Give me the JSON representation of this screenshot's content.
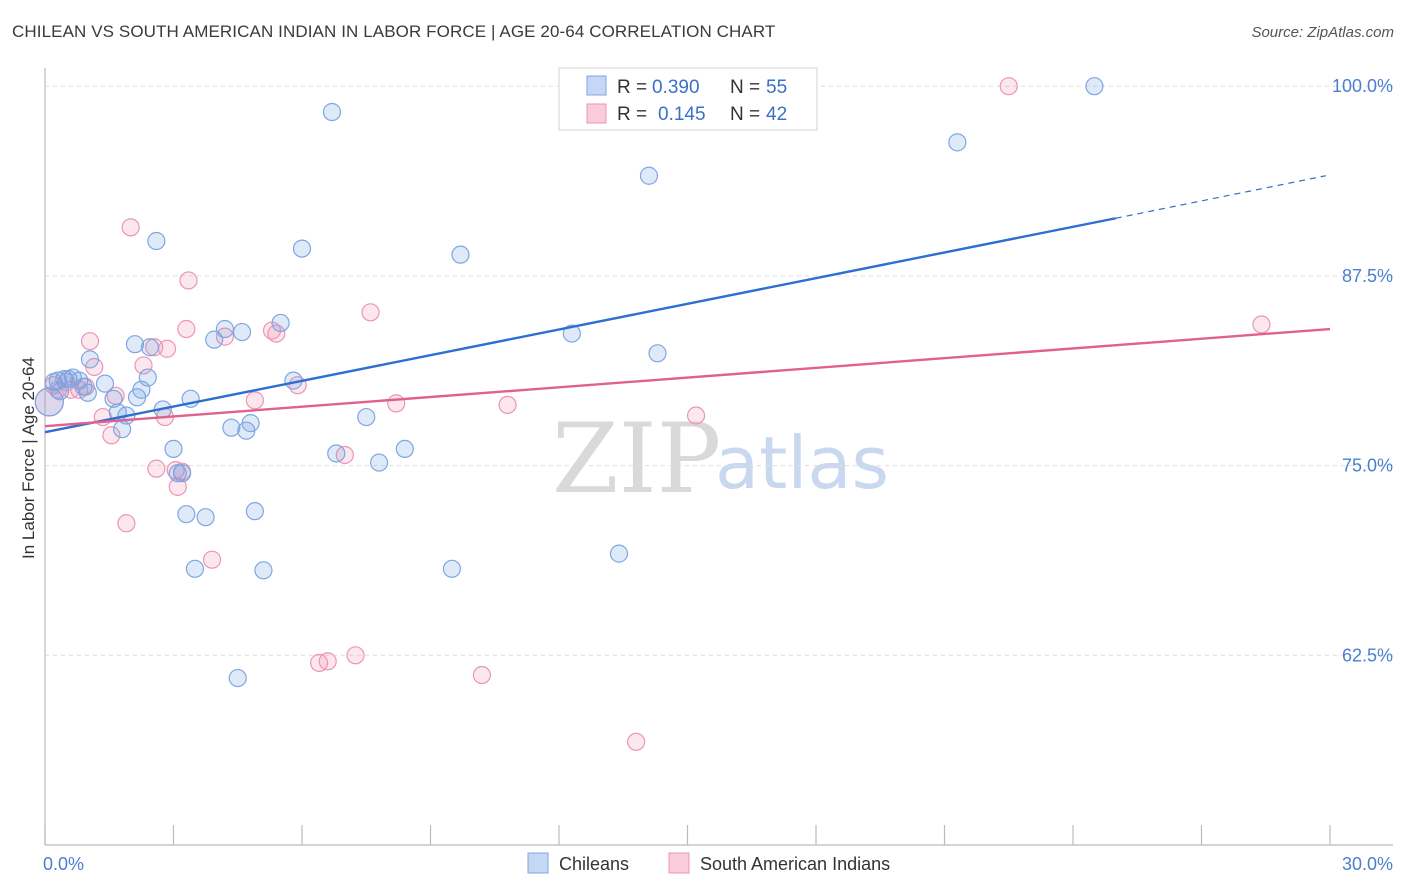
{
  "title": "CHILEAN VS SOUTH AMERICAN INDIAN IN LABOR FORCE | AGE 20-64 CORRELATION CHART",
  "source": "Source: ZipAtlas.com",
  "watermark": {
    "zip": "ZIP",
    "atlas": "atlas"
  },
  "colors": {
    "chileans": "#6f9fe0",
    "chileans_line": "#2b6fd0",
    "sai": "#f090b0",
    "sai_line": "#e06090",
    "tick": "#4a7fd0"
  },
  "legend": {
    "r_label": "R =",
    "n_label": "N =",
    "chileans_r": "0.390",
    "chileans_n": "55",
    "sai_r": "0.145",
    "sai_n": "42"
  },
  "bottom_legend": {
    "chileans": "Chileans",
    "sai": "South American Indians"
  },
  "chart_data": {
    "type": "scatter",
    "title": "CHILEAN VS SOUTH AMERICAN INDIAN IN LABOR FORCE | AGE 20-64 CORRELATION CHART",
    "xlabel": "",
    "ylabel": "In Labor Force | Age 20-64",
    "xlim": [
      0,
      30
    ],
    "ylim": [
      50,
      101.2
    ],
    "x_tick_labels": [
      "0.0%",
      "30.0%"
    ],
    "y_ticks": [
      62.5,
      75.0,
      87.5,
      100.0
    ],
    "y_tick_labels": [
      "62.5%",
      "75.0%",
      "87.5%",
      "100.0%"
    ],
    "series": [
      {
        "name": "Chileans",
        "r": 0.39,
        "n": 55,
        "trend": {
          "x0": 0,
          "y0": 77.2,
          "x1": 25.0,
          "y1": 91.3,
          "dash_to_x": 29.9,
          "dash_to_y": 94.1
        },
        "points": [
          [
            0.1,
            79.2
          ],
          [
            0.2,
            80.5
          ],
          [
            0.3,
            80.6
          ],
          [
            0.35,
            79.9
          ],
          [
            0.45,
            80.7
          ],
          [
            0.55,
            80.7
          ],
          [
            0.65,
            80.8
          ],
          [
            0.8,
            80.6
          ],
          [
            0.9,
            80.2
          ],
          [
            1.0,
            79.8
          ],
          [
            1.05,
            82.0
          ],
          [
            1.4,
            80.4
          ],
          [
            1.6,
            79.4
          ],
          [
            1.7,
            78.5
          ],
          [
            1.8,
            77.4
          ],
          [
            1.9,
            78.3
          ],
          [
            2.1,
            83.0
          ],
          [
            2.15,
            79.5
          ],
          [
            2.25,
            80.0
          ],
          [
            2.4,
            80.8
          ],
          [
            2.45,
            82.8
          ],
          [
            2.6,
            89.8
          ],
          [
            2.75,
            78.7
          ],
          [
            3.0,
            76.1
          ],
          [
            3.1,
            74.5
          ],
          [
            3.2,
            74.5
          ],
          [
            3.3,
            71.8
          ],
          [
            3.4,
            79.4
          ],
          [
            3.5,
            68.2
          ],
          [
            3.75,
            71.6
          ],
          [
            3.95,
            83.3
          ],
          [
            4.2,
            84.0
          ],
          [
            4.35,
            77.5
          ],
          [
            4.5,
            61.0
          ],
          [
            4.6,
            83.8
          ],
          [
            4.7,
            77.3
          ],
          [
            4.8,
            77.8
          ],
          [
            4.9,
            72.0
          ],
          [
            5.1,
            68.1
          ],
          [
            5.5,
            84.4
          ],
          [
            5.8,
            80.6
          ],
          [
            6.0,
            89.3
          ],
          [
            6.7,
            98.3
          ],
          [
            6.8,
            75.8
          ],
          [
            7.5,
            78.2
          ],
          [
            7.8,
            75.2
          ],
          [
            8.4,
            76.1
          ],
          [
            9.5,
            68.2
          ],
          [
            9.7,
            88.9
          ],
          [
            12.3,
            83.7
          ],
          [
            13.4,
            69.2
          ],
          [
            14.1,
            94.1
          ],
          [
            14.3,
            82.4
          ],
          [
            21.3,
            96.3
          ],
          [
            24.5,
            100.0
          ]
        ]
      },
      {
        "name": "South American Indians",
        "r": 0.145,
        "n": 42,
        "trend": {
          "x0": 0,
          "y0": 77.6,
          "x1": 30.0,
          "y1": 84.0
        },
        "points": [
          [
            0.1,
            79.2
          ],
          [
            0.2,
            80.3
          ],
          [
            0.3,
            80.0
          ],
          [
            0.5,
            80.5
          ],
          [
            0.6,
            80.0
          ],
          [
            0.8,
            80.0
          ],
          [
            0.95,
            80.2
          ],
          [
            1.05,
            83.2
          ],
          [
            1.15,
            81.5
          ],
          [
            1.35,
            78.2
          ],
          [
            1.55,
            77.0
          ],
          [
            1.65,
            79.6
          ],
          [
            1.9,
            71.2
          ],
          [
            2.0,
            90.7
          ],
          [
            2.3,
            81.6
          ],
          [
            2.55,
            82.8
          ],
          [
            2.6,
            74.8
          ],
          [
            2.8,
            78.2
          ],
          [
            2.85,
            82.7
          ],
          [
            3.05,
            74.7
          ],
          [
            3.1,
            73.6
          ],
          [
            3.2,
            74.6
          ],
          [
            3.3,
            84.0
          ],
          [
            3.35,
            87.2
          ],
          [
            3.9,
            68.8
          ],
          [
            4.2,
            83.5
          ],
          [
            4.9,
            79.3
          ],
          [
            5.3,
            83.9
          ],
          [
            5.4,
            83.7
          ],
          [
            5.9,
            80.3
          ],
          [
            6.4,
            62.0
          ],
          [
            6.6,
            62.1
          ],
          [
            7.0,
            75.7
          ],
          [
            7.25,
            62.5
          ],
          [
            7.6,
            85.1
          ],
          [
            8.2,
            79.1
          ],
          [
            10.2,
            61.2
          ],
          [
            10.8,
            79.0
          ],
          [
            13.8,
            56.8
          ],
          [
            15.2,
            78.3
          ],
          [
            22.5,
            100.0
          ],
          [
            28.4,
            84.3
          ]
        ]
      }
    ]
  }
}
